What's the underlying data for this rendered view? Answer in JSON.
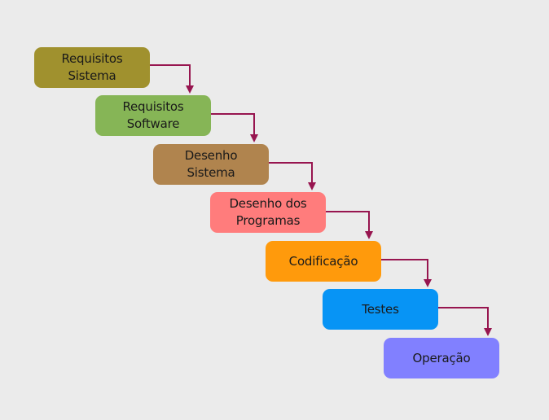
{
  "steps": [
    {
      "label": "Requisitos\nSistema",
      "color": "#a0912e"
    },
    {
      "label": "Requisitos\nSoftware",
      "color": "#86b556"
    },
    {
      "label": "Desenho\nSistema",
      "color": "#b0844e"
    },
    {
      "label": "Desenho dos\nProgramas",
      "color": "#ff7c7c"
    },
    {
      "label": "Codificação",
      "color": "#ff9a0c"
    },
    {
      "label": "Testes",
      "color": "#0794f5"
    },
    {
      "label": "Operação",
      "color": "#8180ff"
    }
  ],
  "arrow_color": "#97154f"
}
